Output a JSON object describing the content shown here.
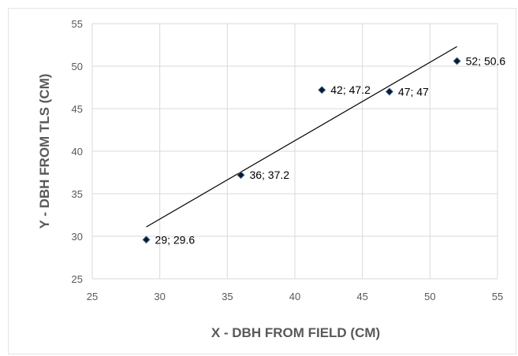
{
  "chart_data": {
    "type": "scatter",
    "title": "",
    "xlabel": "X - DBH FROM  FIELD (CM)",
    "ylabel": "Y - DBH FROM TLS (CM)",
    "xlim": [
      25,
      55
    ],
    "ylim": [
      25,
      55
    ],
    "xticks": [
      "25",
      "30",
      "35",
      "40",
      "45",
      "50",
      "55"
    ],
    "yticks": [
      "25",
      "30",
      "35",
      "40",
      "45",
      "50",
      "55"
    ],
    "grid": true,
    "legend": "none",
    "marker_color": "#0d1b2e",
    "trendline": {
      "type": "linear",
      "x_start": 29,
      "y_start": 31.1,
      "x_end": 52,
      "y_end": 52.3
    },
    "series": [
      {
        "points": [
          {
            "x": 29,
            "y": 29.6,
            "label": "29; 29.6"
          },
          {
            "x": 36,
            "y": 37.2,
            "label": "36; 37.2"
          },
          {
            "x": 42,
            "y": 47.2,
            "label": "42; 47.2"
          },
          {
            "x": 47,
            "y": 47,
            "label": "47; 47"
          },
          {
            "x": 52,
            "y": 50.6,
            "label": "52; 50.6"
          }
        ]
      }
    ]
  }
}
